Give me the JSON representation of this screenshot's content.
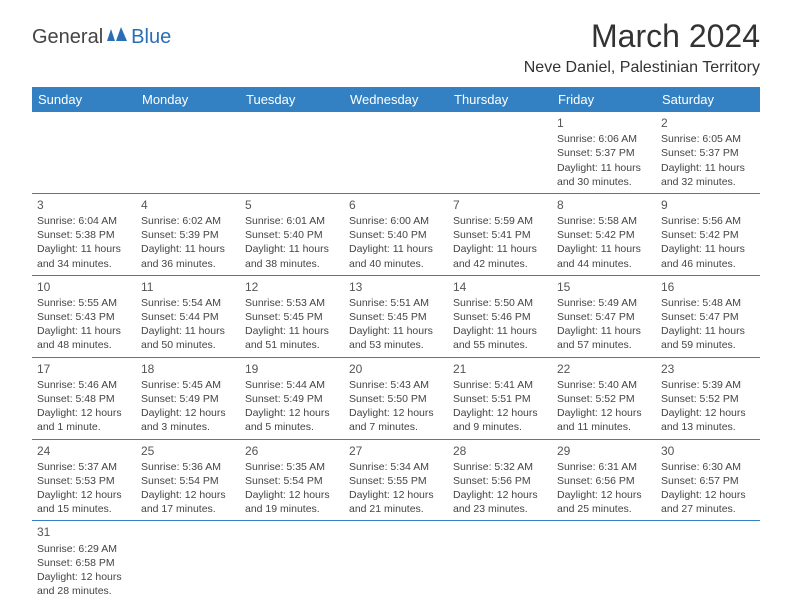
{
  "logo": {
    "general": "General",
    "blue": "Blue"
  },
  "title": "March 2024",
  "location": "Neve Daniel, Palestinian Territory",
  "colors": {
    "header_bg": "#3380c2",
    "header_text": "#ffffff",
    "border": "#3380c2",
    "text": "#333333",
    "logo_blue": "#2a6fb5"
  },
  "day_headers": [
    "Sunday",
    "Monday",
    "Tuesday",
    "Wednesday",
    "Thursday",
    "Friday",
    "Saturday"
  ],
  "weeks": [
    [
      null,
      null,
      null,
      null,
      null,
      {
        "n": "1",
        "sr": "Sunrise: 6:06 AM",
        "ss": "Sunset: 5:37 PM",
        "dl": "Daylight: 11 hours and 30 minutes."
      },
      {
        "n": "2",
        "sr": "Sunrise: 6:05 AM",
        "ss": "Sunset: 5:37 PM",
        "dl": "Daylight: 11 hours and 32 minutes."
      }
    ],
    [
      {
        "n": "3",
        "sr": "Sunrise: 6:04 AM",
        "ss": "Sunset: 5:38 PM",
        "dl": "Daylight: 11 hours and 34 minutes."
      },
      {
        "n": "4",
        "sr": "Sunrise: 6:02 AM",
        "ss": "Sunset: 5:39 PM",
        "dl": "Daylight: 11 hours and 36 minutes."
      },
      {
        "n": "5",
        "sr": "Sunrise: 6:01 AM",
        "ss": "Sunset: 5:40 PM",
        "dl": "Daylight: 11 hours and 38 minutes."
      },
      {
        "n": "6",
        "sr": "Sunrise: 6:00 AM",
        "ss": "Sunset: 5:40 PM",
        "dl": "Daylight: 11 hours and 40 minutes."
      },
      {
        "n": "7",
        "sr": "Sunrise: 5:59 AM",
        "ss": "Sunset: 5:41 PM",
        "dl": "Daylight: 11 hours and 42 minutes."
      },
      {
        "n": "8",
        "sr": "Sunrise: 5:58 AM",
        "ss": "Sunset: 5:42 PM",
        "dl": "Daylight: 11 hours and 44 minutes."
      },
      {
        "n": "9",
        "sr": "Sunrise: 5:56 AM",
        "ss": "Sunset: 5:42 PM",
        "dl": "Daylight: 11 hours and 46 minutes."
      }
    ],
    [
      {
        "n": "10",
        "sr": "Sunrise: 5:55 AM",
        "ss": "Sunset: 5:43 PM",
        "dl": "Daylight: 11 hours and 48 minutes."
      },
      {
        "n": "11",
        "sr": "Sunrise: 5:54 AM",
        "ss": "Sunset: 5:44 PM",
        "dl": "Daylight: 11 hours and 50 minutes."
      },
      {
        "n": "12",
        "sr": "Sunrise: 5:53 AM",
        "ss": "Sunset: 5:45 PM",
        "dl": "Daylight: 11 hours and 51 minutes."
      },
      {
        "n": "13",
        "sr": "Sunrise: 5:51 AM",
        "ss": "Sunset: 5:45 PM",
        "dl": "Daylight: 11 hours and 53 minutes."
      },
      {
        "n": "14",
        "sr": "Sunrise: 5:50 AM",
        "ss": "Sunset: 5:46 PM",
        "dl": "Daylight: 11 hours and 55 minutes."
      },
      {
        "n": "15",
        "sr": "Sunrise: 5:49 AM",
        "ss": "Sunset: 5:47 PM",
        "dl": "Daylight: 11 hours and 57 minutes."
      },
      {
        "n": "16",
        "sr": "Sunrise: 5:48 AM",
        "ss": "Sunset: 5:47 PM",
        "dl": "Daylight: 11 hours and 59 minutes."
      }
    ],
    [
      {
        "n": "17",
        "sr": "Sunrise: 5:46 AM",
        "ss": "Sunset: 5:48 PM",
        "dl": "Daylight: 12 hours and 1 minute."
      },
      {
        "n": "18",
        "sr": "Sunrise: 5:45 AM",
        "ss": "Sunset: 5:49 PM",
        "dl": "Daylight: 12 hours and 3 minutes."
      },
      {
        "n": "19",
        "sr": "Sunrise: 5:44 AM",
        "ss": "Sunset: 5:49 PM",
        "dl": "Daylight: 12 hours and 5 minutes."
      },
      {
        "n": "20",
        "sr": "Sunrise: 5:43 AM",
        "ss": "Sunset: 5:50 PM",
        "dl": "Daylight: 12 hours and 7 minutes."
      },
      {
        "n": "21",
        "sr": "Sunrise: 5:41 AM",
        "ss": "Sunset: 5:51 PM",
        "dl": "Daylight: 12 hours and 9 minutes."
      },
      {
        "n": "22",
        "sr": "Sunrise: 5:40 AM",
        "ss": "Sunset: 5:52 PM",
        "dl": "Daylight: 12 hours and 11 minutes."
      },
      {
        "n": "23",
        "sr": "Sunrise: 5:39 AM",
        "ss": "Sunset: 5:52 PM",
        "dl": "Daylight: 12 hours and 13 minutes."
      }
    ],
    [
      {
        "n": "24",
        "sr": "Sunrise: 5:37 AM",
        "ss": "Sunset: 5:53 PM",
        "dl": "Daylight: 12 hours and 15 minutes."
      },
      {
        "n": "25",
        "sr": "Sunrise: 5:36 AM",
        "ss": "Sunset: 5:54 PM",
        "dl": "Daylight: 12 hours and 17 minutes."
      },
      {
        "n": "26",
        "sr": "Sunrise: 5:35 AM",
        "ss": "Sunset: 5:54 PM",
        "dl": "Daylight: 12 hours and 19 minutes."
      },
      {
        "n": "27",
        "sr": "Sunrise: 5:34 AM",
        "ss": "Sunset: 5:55 PM",
        "dl": "Daylight: 12 hours and 21 minutes."
      },
      {
        "n": "28",
        "sr": "Sunrise: 5:32 AM",
        "ss": "Sunset: 5:56 PM",
        "dl": "Daylight: 12 hours and 23 minutes."
      },
      {
        "n": "29",
        "sr": "Sunrise: 6:31 AM",
        "ss": "Sunset: 6:56 PM",
        "dl": "Daylight: 12 hours and 25 minutes."
      },
      {
        "n": "30",
        "sr": "Sunrise: 6:30 AM",
        "ss": "Sunset: 6:57 PM",
        "dl": "Daylight: 12 hours and 27 minutes."
      }
    ],
    [
      {
        "n": "31",
        "sr": "Sunrise: 6:29 AM",
        "ss": "Sunset: 6:58 PM",
        "dl": "Daylight: 12 hours and 28 minutes."
      },
      null,
      null,
      null,
      null,
      null,
      null
    ]
  ]
}
